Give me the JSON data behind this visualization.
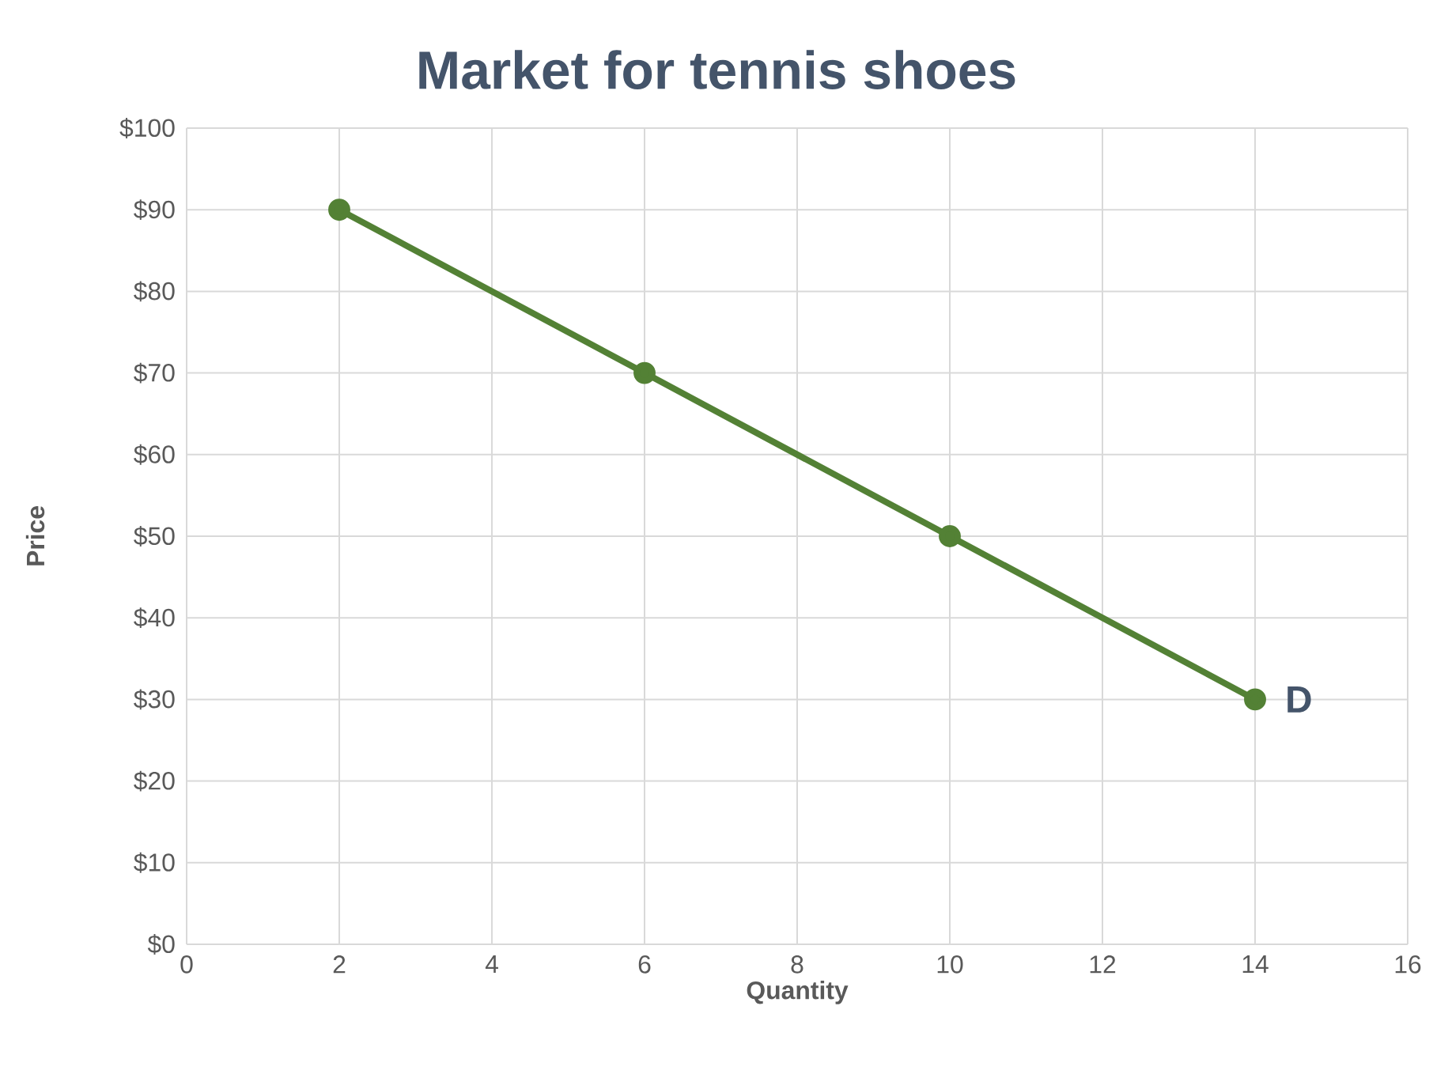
{
  "chart_data": {
    "type": "line",
    "title": "Market for tennis shoes",
    "xlabel": "Quantity",
    "ylabel": "Price",
    "x": [
      2,
      6,
      10,
      14
    ],
    "series": [
      {
        "name": "D",
        "color": "#538135",
        "values": [
          90,
          70,
          50,
          30
        ]
      }
    ],
    "xlim": [
      0,
      16
    ],
    "xticks": [
      0,
      2,
      4,
      6,
      8,
      10,
      12,
      14,
      16
    ],
    "ylim": [
      0,
      100
    ],
    "yticks": [
      {
        "value": 0,
        "label": "$0"
      },
      {
        "value": 10,
        "label": "$10"
      },
      {
        "value": 20,
        "label": "$20"
      },
      {
        "value": 30,
        "label": "$30"
      },
      {
        "value": 40,
        "label": "$40"
      },
      {
        "value": 50,
        "label": "$50"
      },
      {
        "value": 60,
        "label": "$60"
      },
      {
        "value": 70,
        "label": "$70"
      },
      {
        "value": 80,
        "label": "$80"
      },
      {
        "value": 90,
        "label": "$90"
      },
      {
        "value": 100,
        "label": "$100"
      }
    ],
    "grid": true,
    "marker": "circle",
    "line_style": "solid"
  }
}
